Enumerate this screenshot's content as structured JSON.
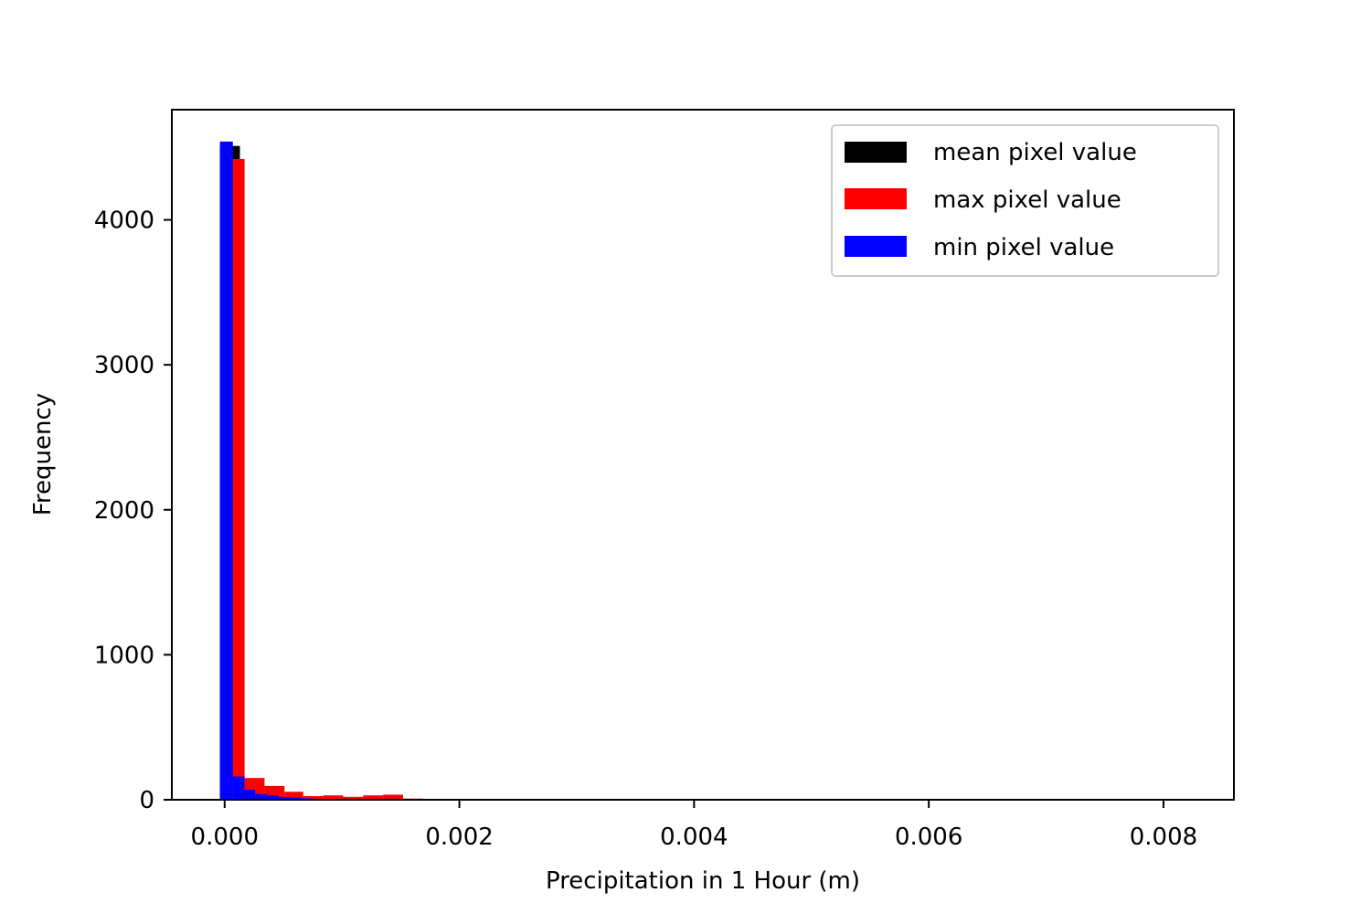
{
  "chart_data": {
    "type": "bar",
    "subtype": "histogram",
    "title": "",
    "xlabel": "Precipitation in 1 Hour (m)",
    "ylabel": "Frequency",
    "xlim": [
      -0.00045,
      0.0086
    ],
    "ylim": [
      0,
      4760
    ],
    "xticks": [
      0.0,
      0.002,
      0.004,
      0.006,
      0.008
    ],
    "xtick_labels": [
      "0.000",
      "0.002",
      "0.004",
      "0.006",
      "0.008"
    ],
    "yticks": [
      0,
      1000,
      2000,
      3000,
      4000
    ],
    "ytick_labels": [
      "0",
      "1000",
      "2000",
      "3000",
      "4000"
    ],
    "grid": false,
    "legend_position": "top-right",
    "series": [
      {
        "name": "mean pixel value",
        "color": "#000000",
        "bins": [
          {
            "x0": -4e-05,
            "x1": 0.00013,
            "count": 4510
          },
          {
            "x0": 0.00013,
            "x1": 0.0003,
            "count": 60
          },
          {
            "x0": 0.0003,
            "x1": 0.00047,
            "count": 25
          },
          {
            "x0": 0.00047,
            "x1": 0.00064,
            "count": 12
          },
          {
            "x0": 0.00064,
            "x1": 0.0008,
            "count": 6
          }
        ]
      },
      {
        "name": "max pixel value",
        "color": "#ff0000",
        "bins": [
          {
            "x0": 0.0,
            "x1": 0.00017,
            "count": 4420
          },
          {
            "x0": 0.00017,
            "x1": 0.00034,
            "count": 150
          },
          {
            "x0": 0.00034,
            "x1": 0.00051,
            "count": 95
          },
          {
            "x0": 0.00051,
            "x1": 0.00067,
            "count": 55
          },
          {
            "x0": 0.00067,
            "x1": 0.00084,
            "count": 25
          },
          {
            "x0": 0.00084,
            "x1": 0.00101,
            "count": 30
          },
          {
            "x0": 0.00101,
            "x1": 0.00118,
            "count": 20
          },
          {
            "x0": 0.00118,
            "x1": 0.00135,
            "count": 30
          },
          {
            "x0": 0.00135,
            "x1": 0.00152,
            "count": 35
          },
          {
            "x0": 0.00152,
            "x1": 0.00169,
            "count": 8
          },
          {
            "x0": 0.00169,
            "x1": 0.00186,
            "count": 3
          },
          {
            "x0": 0.00186,
            "x1": 0.00203,
            "count": 2
          },
          {
            "x0": 0.00203,
            "x1": 0.0022,
            "count": 2
          },
          {
            "x0": 0.0022,
            "x1": 0.00237,
            "count": 1
          },
          {
            "x0": 0.00237,
            "x1": 0.00254,
            "count": 1
          }
        ]
      },
      {
        "name": "min pixel value",
        "color": "#0000ff",
        "bins": [
          {
            "x0": -4e-05,
            "x1": 7e-05,
            "count": 4540
          },
          {
            "x0": 7e-05,
            "x1": 0.00017,
            "count": 160
          },
          {
            "x0": 0.00017,
            "x1": 0.00026,
            "count": 70
          },
          {
            "x0": 0.00026,
            "x1": 0.00036,
            "count": 40
          },
          {
            "x0": 0.00036,
            "x1": 0.00046,
            "count": 30
          },
          {
            "x0": 0.00046,
            "x1": 0.00055,
            "count": 20
          },
          {
            "x0": 0.00055,
            "x1": 0.00065,
            "count": 15
          },
          {
            "x0": 0.00065,
            "x1": 0.00075,
            "count": 10
          },
          {
            "x0": 0.00075,
            "x1": 0.00085,
            "count": 6
          },
          {
            "x0": 0.00085,
            "x1": 0.00095,
            "count": 3
          }
        ]
      }
    ]
  }
}
